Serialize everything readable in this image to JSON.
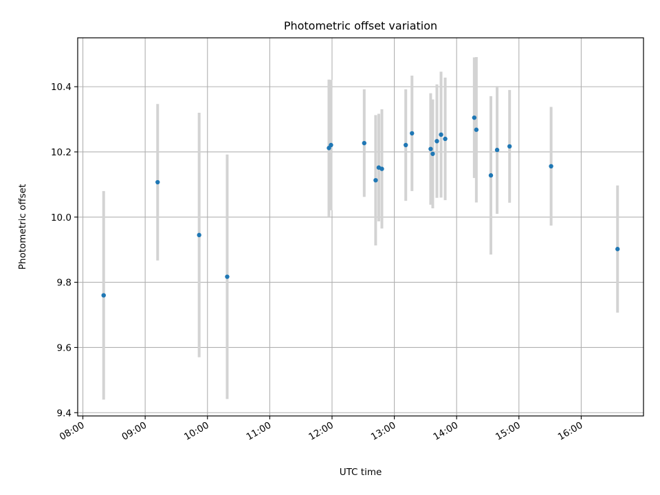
{
  "chart_data": {
    "type": "scatter",
    "title": "Photometric offset variation",
    "xlabel": "UTC time",
    "ylabel": "Photometric offset",
    "grid": true,
    "xlim": [
      "07:55",
      "17:00"
    ],
    "ylim": [
      9.39,
      10.55
    ],
    "x_ticks": [
      "08:00",
      "09:00",
      "10:00",
      "11:00",
      "12:00",
      "13:00",
      "14:00",
      "15:00",
      "16:00"
    ],
    "y_ticks": [
      9.4,
      9.6,
      9.8,
      10.0,
      10.2,
      10.4
    ],
    "y_tick_labels": [
      "9.4",
      "9.6",
      "9.8",
      "10.0",
      "10.2",
      "10.4"
    ],
    "point_color": "#1f77b4",
    "error_color": "#d3d3d3",
    "points": [
      {
        "x": "08:20",
        "y": 9.76,
        "yerr": 0.32
      },
      {
        "x": "09:12",
        "y": 10.107,
        "yerr": 0.24
      },
      {
        "x": "09:52",
        "y": 9.945,
        "yerr": 0.375
      },
      {
        "x": "10:19",
        "y": 9.817,
        "yerr": 0.375
      },
      {
        "x": "11:57",
        "y": 10.212,
        "yerr": 0.21
      },
      {
        "x": "11:59",
        "y": 10.221,
        "yerr": 0.2
      },
      {
        "x": "12:31",
        "y": 10.227,
        "yerr": 0.165
      },
      {
        "x": "12:42",
        "y": 10.113,
        "yerr": 0.2
      },
      {
        "x": "12:45",
        "y": 10.152,
        "yerr": 0.165
      },
      {
        "x": "12:48",
        "y": 10.148,
        "yerr": 0.183
      },
      {
        "x": "13:11",
        "y": 10.221,
        "yerr": 0.171
      },
      {
        "x": "13:17",
        "y": 10.257,
        "yerr": 0.177
      },
      {
        "x": "13:35",
        "y": 10.209,
        "yerr": 0.171
      },
      {
        "x": "13:37",
        "y": 10.194,
        "yerr": 0.167
      },
      {
        "x": "13:41",
        "y": 10.233,
        "yerr": 0.174
      },
      {
        "x": "13:45",
        "y": 10.253,
        "yerr": 0.193
      },
      {
        "x": "13:49",
        "y": 10.24,
        "yerr": 0.188
      },
      {
        "x": "14:17",
        "y": 10.305,
        "yerr": 0.185
      },
      {
        "x": "14:19",
        "y": 10.268,
        "yerr": 0.223
      },
      {
        "x": "14:33",
        "y": 10.128,
        "yerr": 0.243
      },
      {
        "x": "14:39",
        "y": 10.206,
        "yerr": 0.196
      },
      {
        "x": "14:51",
        "y": 10.217,
        "yerr": 0.173
      },
      {
        "x": "15:31",
        "y": 10.156,
        "yerr": 0.182
      },
      {
        "x": "16:35",
        "y": 9.902,
        "yerr": 0.195
      }
    ]
  }
}
